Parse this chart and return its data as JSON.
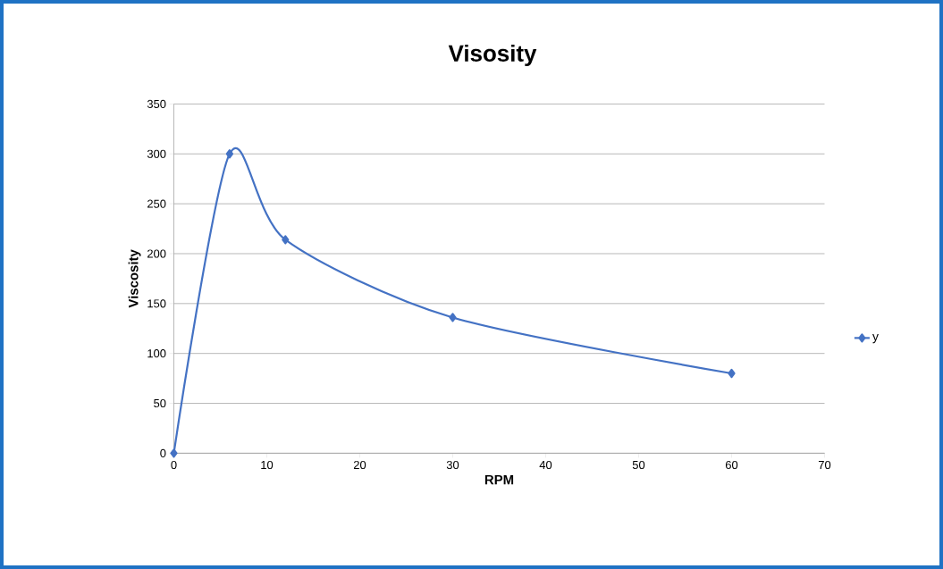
{
  "chart_data": {
    "type": "line",
    "title": "Visosity",
    "xlabel": "RPM",
    "ylabel": "Viscosity",
    "x": [
      0,
      6,
      12,
      30,
      60
    ],
    "series": [
      {
        "name": "y",
        "color": "#4472c4",
        "values": [
          0,
          300,
          214,
          136,
          80
        ]
      }
    ],
    "xlim": [
      0,
      70
    ],
    "xticks": [
      0,
      10,
      20,
      30,
      40,
      50,
      60,
      70
    ],
    "ylim": [
      0,
      350
    ],
    "yticks": [
      0,
      50,
      100,
      150,
      200,
      250,
      300,
      350
    ],
    "grid": "y",
    "legend": "right",
    "marker": "diamond",
    "line_style": "solid"
  }
}
